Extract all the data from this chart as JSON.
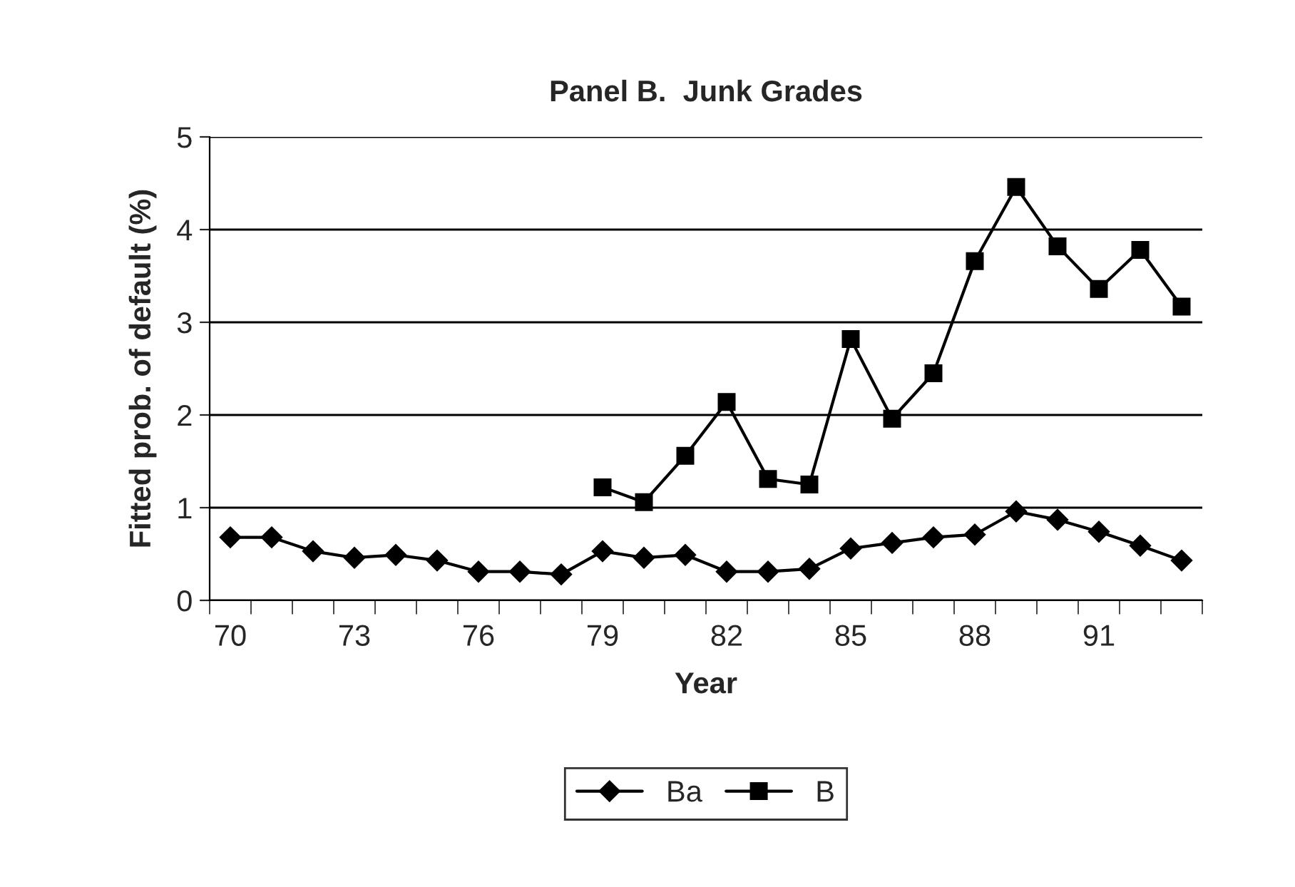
{
  "chart_data": {
    "type": "line",
    "title": "Panel B.  Junk Grades",
    "xlabel": "Year",
    "ylabel": "Fitted prob. of default (%)",
    "categories": [
      "70",
      null,
      null,
      "73",
      null,
      null,
      "76",
      null,
      null,
      "79",
      null,
      null,
      "82",
      null,
      null,
      "85",
      null,
      null,
      "88",
      null,
      null,
      "91",
      null,
      null
    ],
    "series": [
      {
        "name": "Ba",
        "color": "#000000",
        "marker": "diamond",
        "values": [
          0.68,
          0.68,
          0.53,
          0.46,
          0.49,
          0.43,
          0.31,
          0.31,
          0.28,
          0.53,
          0.46,
          0.49,
          0.31,
          0.31,
          0.34,
          0.56,
          0.62,
          0.68,
          0.71,
          0.96,
          0.87,
          0.74,
          0.59,
          0.43
        ]
      },
      {
        "name": "B",
        "color": "#000000",
        "marker": "square",
        "values": [
          null,
          null,
          null,
          null,
          null,
          null,
          null,
          null,
          null,
          1.22,
          1.06,
          1.56,
          2.14,
          1.31,
          1.25,
          2.82,
          1.96,
          2.45,
          3.66,
          4.46,
          3.82,
          3.36,
          3.78,
          3.17
        ]
      }
    ],
    "ylim": [
      0,
      5
    ],
    "yticks": [
      0,
      1,
      2,
      3,
      4,
      5
    ],
    "grid": "y",
    "legend": "bottom",
    "line_style": "solid"
  }
}
